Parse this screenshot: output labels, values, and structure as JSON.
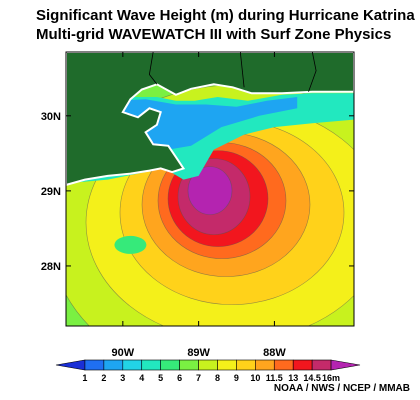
{
  "chart_data": {
    "type": "heatmap",
    "title": "Significant Wave Height (m) during Hurricane Katrina",
    "subtitle": "Multi-grid WAVEWATCH III with Surf Zone Physics",
    "x_ticks": [
      "90W",
      "89W",
      "88W"
    ],
    "x_tick_values": [
      -90,
      -89,
      -88
    ],
    "y_ticks": [
      "30N",
      "29N",
      "28N"
    ],
    "y_tick_values": [
      30,
      29,
      28
    ],
    "xlim": [
      -90.75,
      -86.95
    ],
    "ylim": [
      27.2,
      30.85
    ],
    "colorbar": {
      "labels": [
        "1",
        "2",
        "3",
        "4",
        "5",
        "6",
        "7",
        "8",
        "9",
        "10",
        "11.5",
        "13",
        "14.5",
        "16m"
      ],
      "colors": [
        "#1a2fd6",
        "#1f6ff2",
        "#1ea5f2",
        "#22d3e6",
        "#22e8bf",
        "#36ea7a",
        "#7af042",
        "#c8f21e",
        "#f4f01a",
        "#ffd21a",
        "#ffa51e",
        "#ff6a1e",
        "#f2161e",
        "#c42a6a",
        "#b424b0"
      ]
    },
    "field": {
      "peak_wave_height_m": 16,
      "peak_location": [
        -88.85,
        28.95
      ]
    },
    "land_color": "#1f6b2b",
    "credit": "NOAA / NWS / NCEP / MMAB"
  }
}
